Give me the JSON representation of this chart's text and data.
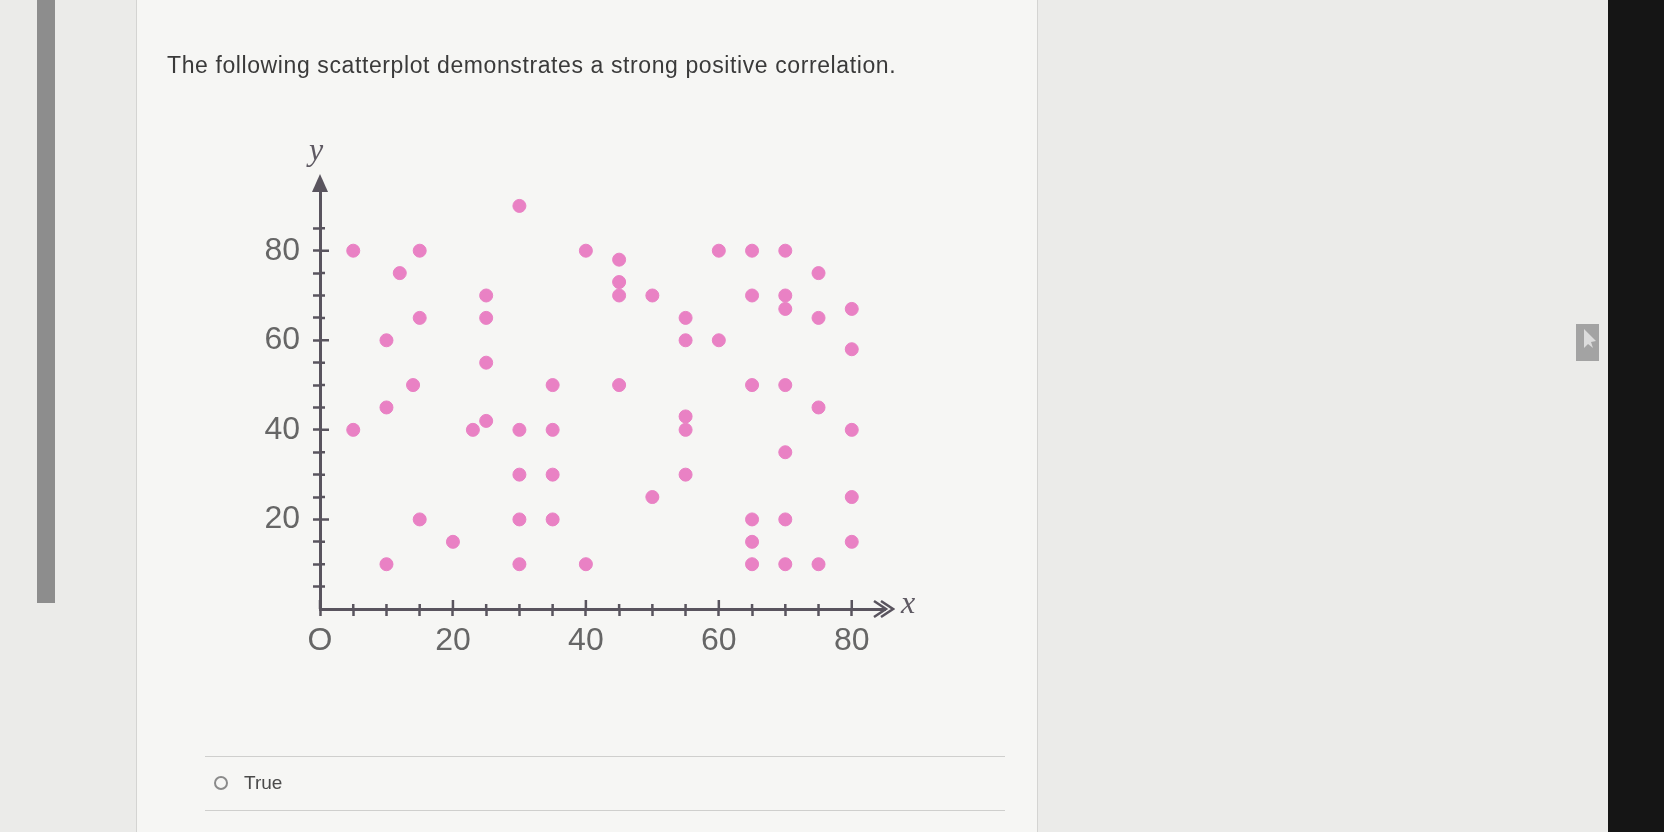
{
  "chart_data": {
    "type": "scatter",
    "title": "The following scatterplot demonstrates a strong positive correlation.",
    "xlabel": "x",
    "ylabel": "y",
    "x": [
      5,
      5,
      10,
      10,
      10,
      12,
      15,
      15,
      14,
      15,
      20,
      23,
      25,
      25,
      25,
      25,
      30,
      30,
      30,
      30,
      30,
      35,
      35,
      35,
      35,
      40,
      40,
      45,
      45,
      45,
      45,
      50,
      50,
      55,
      55,
      55,
      55,
      55,
      60,
      60,
      65,
      65,
      65,
      65,
      65,
      65,
      70,
      70,
      70,
      70,
      70,
      70,
      70,
      75,
      75,
      75,
      75,
      80,
      80,
      80,
      80,
      80
    ],
    "values": [
      80,
      40,
      60,
      45,
      10,
      75,
      80,
      65,
      50,
      20,
      15,
      40,
      70,
      65,
      55,
      42,
      90,
      40,
      30,
      20,
      10,
      50,
      40,
      30,
      20,
      80,
      10,
      78,
      73,
      70,
      50,
      70,
      25,
      65,
      60,
      43,
      40,
      30,
      80,
      60,
      80,
      70,
      50,
      20,
      15,
      10,
      80,
      70,
      67,
      50,
      35,
      20,
      10,
      75,
      65,
      45,
      10,
      67,
      58,
      40,
      25,
      15
    ],
    "color": "#e981c4",
    "marker": "circle",
    "xlim": [
      0,
      85
    ],
    "ylim": [
      0,
      94
    ],
    "xticks": [
      {
        "value": 0,
        "label": "O"
      },
      {
        "value": 5,
        "label": null
      },
      {
        "value": 10,
        "label": null
      },
      {
        "value": 15,
        "label": null
      },
      20,
      {
        "value": 25,
        "label": null
      },
      {
        "value": 30,
        "label": null
      },
      {
        "value": 35,
        "label": null
      },
      40,
      {
        "value": 45,
        "label": null
      },
      {
        "value": 50,
        "label": null
      },
      {
        "value": 55,
        "label": null
      },
      60,
      {
        "value": 65,
        "label": null
      },
      {
        "value": 70,
        "label": null
      },
      {
        "value": 75,
        "label": null
      },
      80
    ],
    "yticks": [
      {
        "value": 5,
        "label": null
      },
      {
        "value": 10,
        "label": null
      },
      {
        "value": 15,
        "label": null
      },
      20,
      {
        "value": 25,
        "label": null
      },
      {
        "value": 30,
        "label": null
      },
      {
        "value": 35,
        "label": null
      },
      40,
      {
        "value": 45,
        "label": null
      },
      {
        "value": 50,
        "label": null
      },
      {
        "value": 55,
        "label": null
      },
      60,
      {
        "value": 65,
        "label": null
      },
      {
        "value": 70,
        "label": null
      },
      {
        "value": 75,
        "label": null
      },
      80,
      {
        "value": 85,
        "label": null
      }
    ],
    "annotations": [
      "True"
    ]
  }
}
